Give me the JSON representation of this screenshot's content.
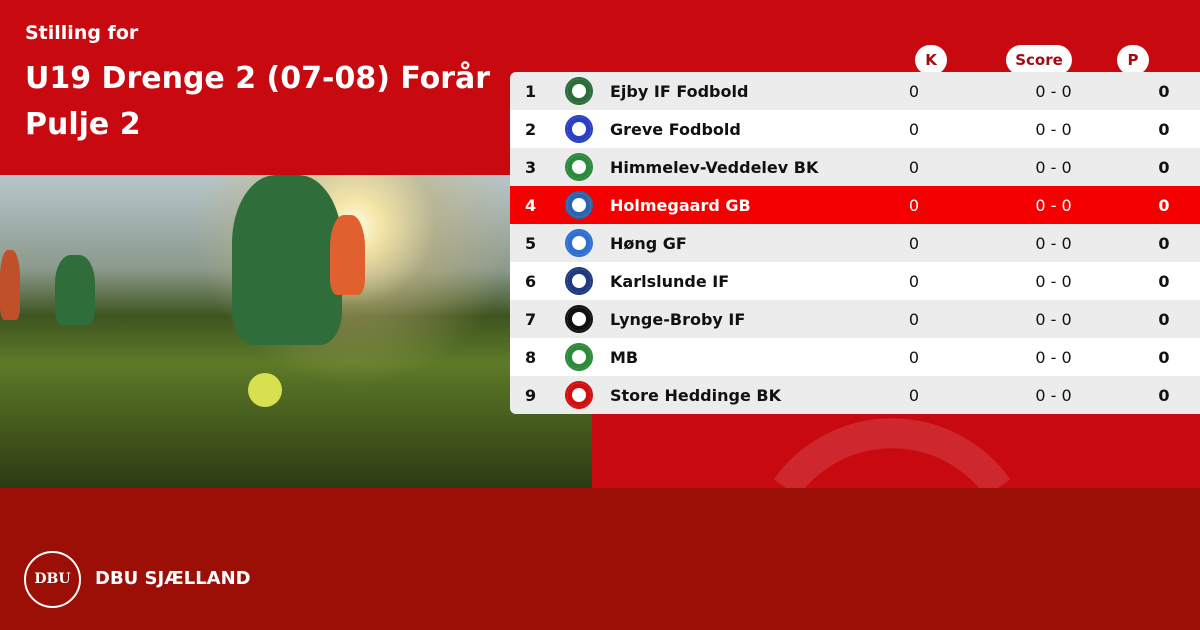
{
  "header": {
    "subtitle": "Stilling for",
    "title": "U19 Drenge 2 (07-08) Forår Pulje 2"
  },
  "columns": {
    "k": "K",
    "score": "Score",
    "p": "P"
  },
  "highlight_color": "#f40000",
  "rows": [
    {
      "pos": "1",
      "team": "Ejby IF Fodbold",
      "k": "0",
      "score": "0 - 0",
      "p": "0",
      "logo_color": "#2e6b3a"
    },
    {
      "pos": "2",
      "team": "Greve Fodbold",
      "k": "0",
      "score": "0 - 0",
      "p": "0",
      "logo_color": "#2b3fc4"
    },
    {
      "pos": "3",
      "team": "Himmelev-Veddelev BK",
      "k": "0",
      "score": "0 - 0",
      "p": "0",
      "logo_color": "#2c8a3c"
    },
    {
      "pos": "4",
      "team": "Holmegaard GB",
      "k": "0",
      "score": "0 - 0",
      "p": "0",
      "logo_color": "#2a66b0"
    },
    {
      "pos": "5",
      "team": "Høng GF",
      "k": "0",
      "score": "0 - 0",
      "p": "0",
      "logo_color": "#2f6fd0"
    },
    {
      "pos": "6",
      "team": "Karlslunde IF",
      "k": "0",
      "score": "0 - 0",
      "p": "0",
      "logo_color": "#1f3a80"
    },
    {
      "pos": "7",
      "team": "Lynge-Broby IF",
      "k": "0",
      "score": "0 - 0",
      "p": "0",
      "logo_color": "#111111"
    },
    {
      "pos": "8",
      "team": "MB",
      "k": "0",
      "score": "0 - 0",
      "p": "0",
      "logo_color": "#2d8a3a"
    },
    {
      "pos": "9",
      "team": "Store Heddinge BK",
      "k": "0",
      "score": "0 - 0",
      "p": "0",
      "logo_color": "#d01010"
    }
  ],
  "footer": {
    "brand": "DBU SJÆLLAND",
    "logo_text": "DBU"
  }
}
